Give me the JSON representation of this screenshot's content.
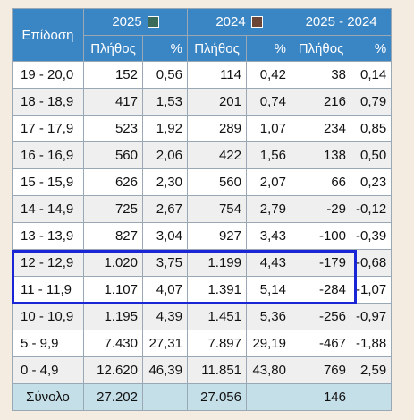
{
  "header": {
    "col_label": "Επίδοση",
    "groups": [
      {
        "label": "2025",
        "swatch_color": "#3a6b5a"
      },
      {
        "label": "2024",
        "swatch_color": "#6b4636"
      },
      {
        "label": "2025 - 2024"
      }
    ],
    "sub": [
      "Πλήθος",
      "%",
      "Πλήθος",
      "%",
      "Πλήθος",
      "%"
    ]
  },
  "rows": [
    {
      "range": "19 - 20,0",
      "c1": "152",
      "p1": "0,56",
      "c2": "114",
      "p2": "0,42",
      "d": "38",
      "dp": "0,14"
    },
    {
      "range": "18 - 18,9",
      "c1": "417",
      "p1": "1,53",
      "c2": "201",
      "p2": "0,74",
      "d": "216",
      "dp": "0,79"
    },
    {
      "range": "17 - 17,9",
      "c1": "523",
      "p1": "1,92",
      "c2": "289",
      "p2": "1,07",
      "d": "234",
      "dp": "0,85"
    },
    {
      "range": "16 - 16,9",
      "c1": "560",
      "p1": "2,06",
      "c2": "422",
      "p2": "1,56",
      "d": "138",
      "dp": "0,50"
    },
    {
      "range": "15 - 15,9",
      "c1": "626",
      "p1": "2,30",
      "c2": "560",
      "p2": "2,07",
      "d": "66",
      "dp": "0,23"
    },
    {
      "range": "14 - 14,9",
      "c1": "725",
      "p1": "2,67",
      "c2": "754",
      "p2": "2,79",
      "d": "-29",
      "dp": "-0,12"
    },
    {
      "range": "13 - 13,9",
      "c1": "827",
      "p1": "3,04",
      "c2": "927",
      "p2": "3,43",
      "d": "-100",
      "dp": "-0,39"
    },
    {
      "range": "12 - 12,9",
      "c1": "1.020",
      "p1": "3,75",
      "c2": "1.199",
      "p2": "4,43",
      "d": "-179",
      "dp": "-0,68"
    },
    {
      "range": "11 - 11,9",
      "c1": "1.107",
      "p1": "4,07",
      "c2": "1.391",
      "p2": "5,14",
      "d": "-284",
      "dp": "-1,07"
    },
    {
      "range": "10 - 10,9",
      "c1": "1.195",
      "p1": "4,39",
      "c2": "1.451",
      "p2": "5,36",
      "d": "-256",
      "dp": "-0,97"
    },
    {
      "range": "5 - 9,9",
      "c1": "7.430",
      "p1": "27,31",
      "c2": "7.897",
      "p2": "29,19",
      "d": "-467",
      "dp": "-1,88"
    },
    {
      "range": "0 - 4,9",
      "c1": "12.620",
      "p1": "46,39",
      "c2": "11.851",
      "p2": "43,80",
      "d": "769",
      "dp": "2,59"
    }
  ],
  "total": {
    "label": "Σύνολο",
    "c1": "27.202",
    "c2": "27.056",
    "d": "146"
  },
  "highlight_color": "#1a25d6"
}
